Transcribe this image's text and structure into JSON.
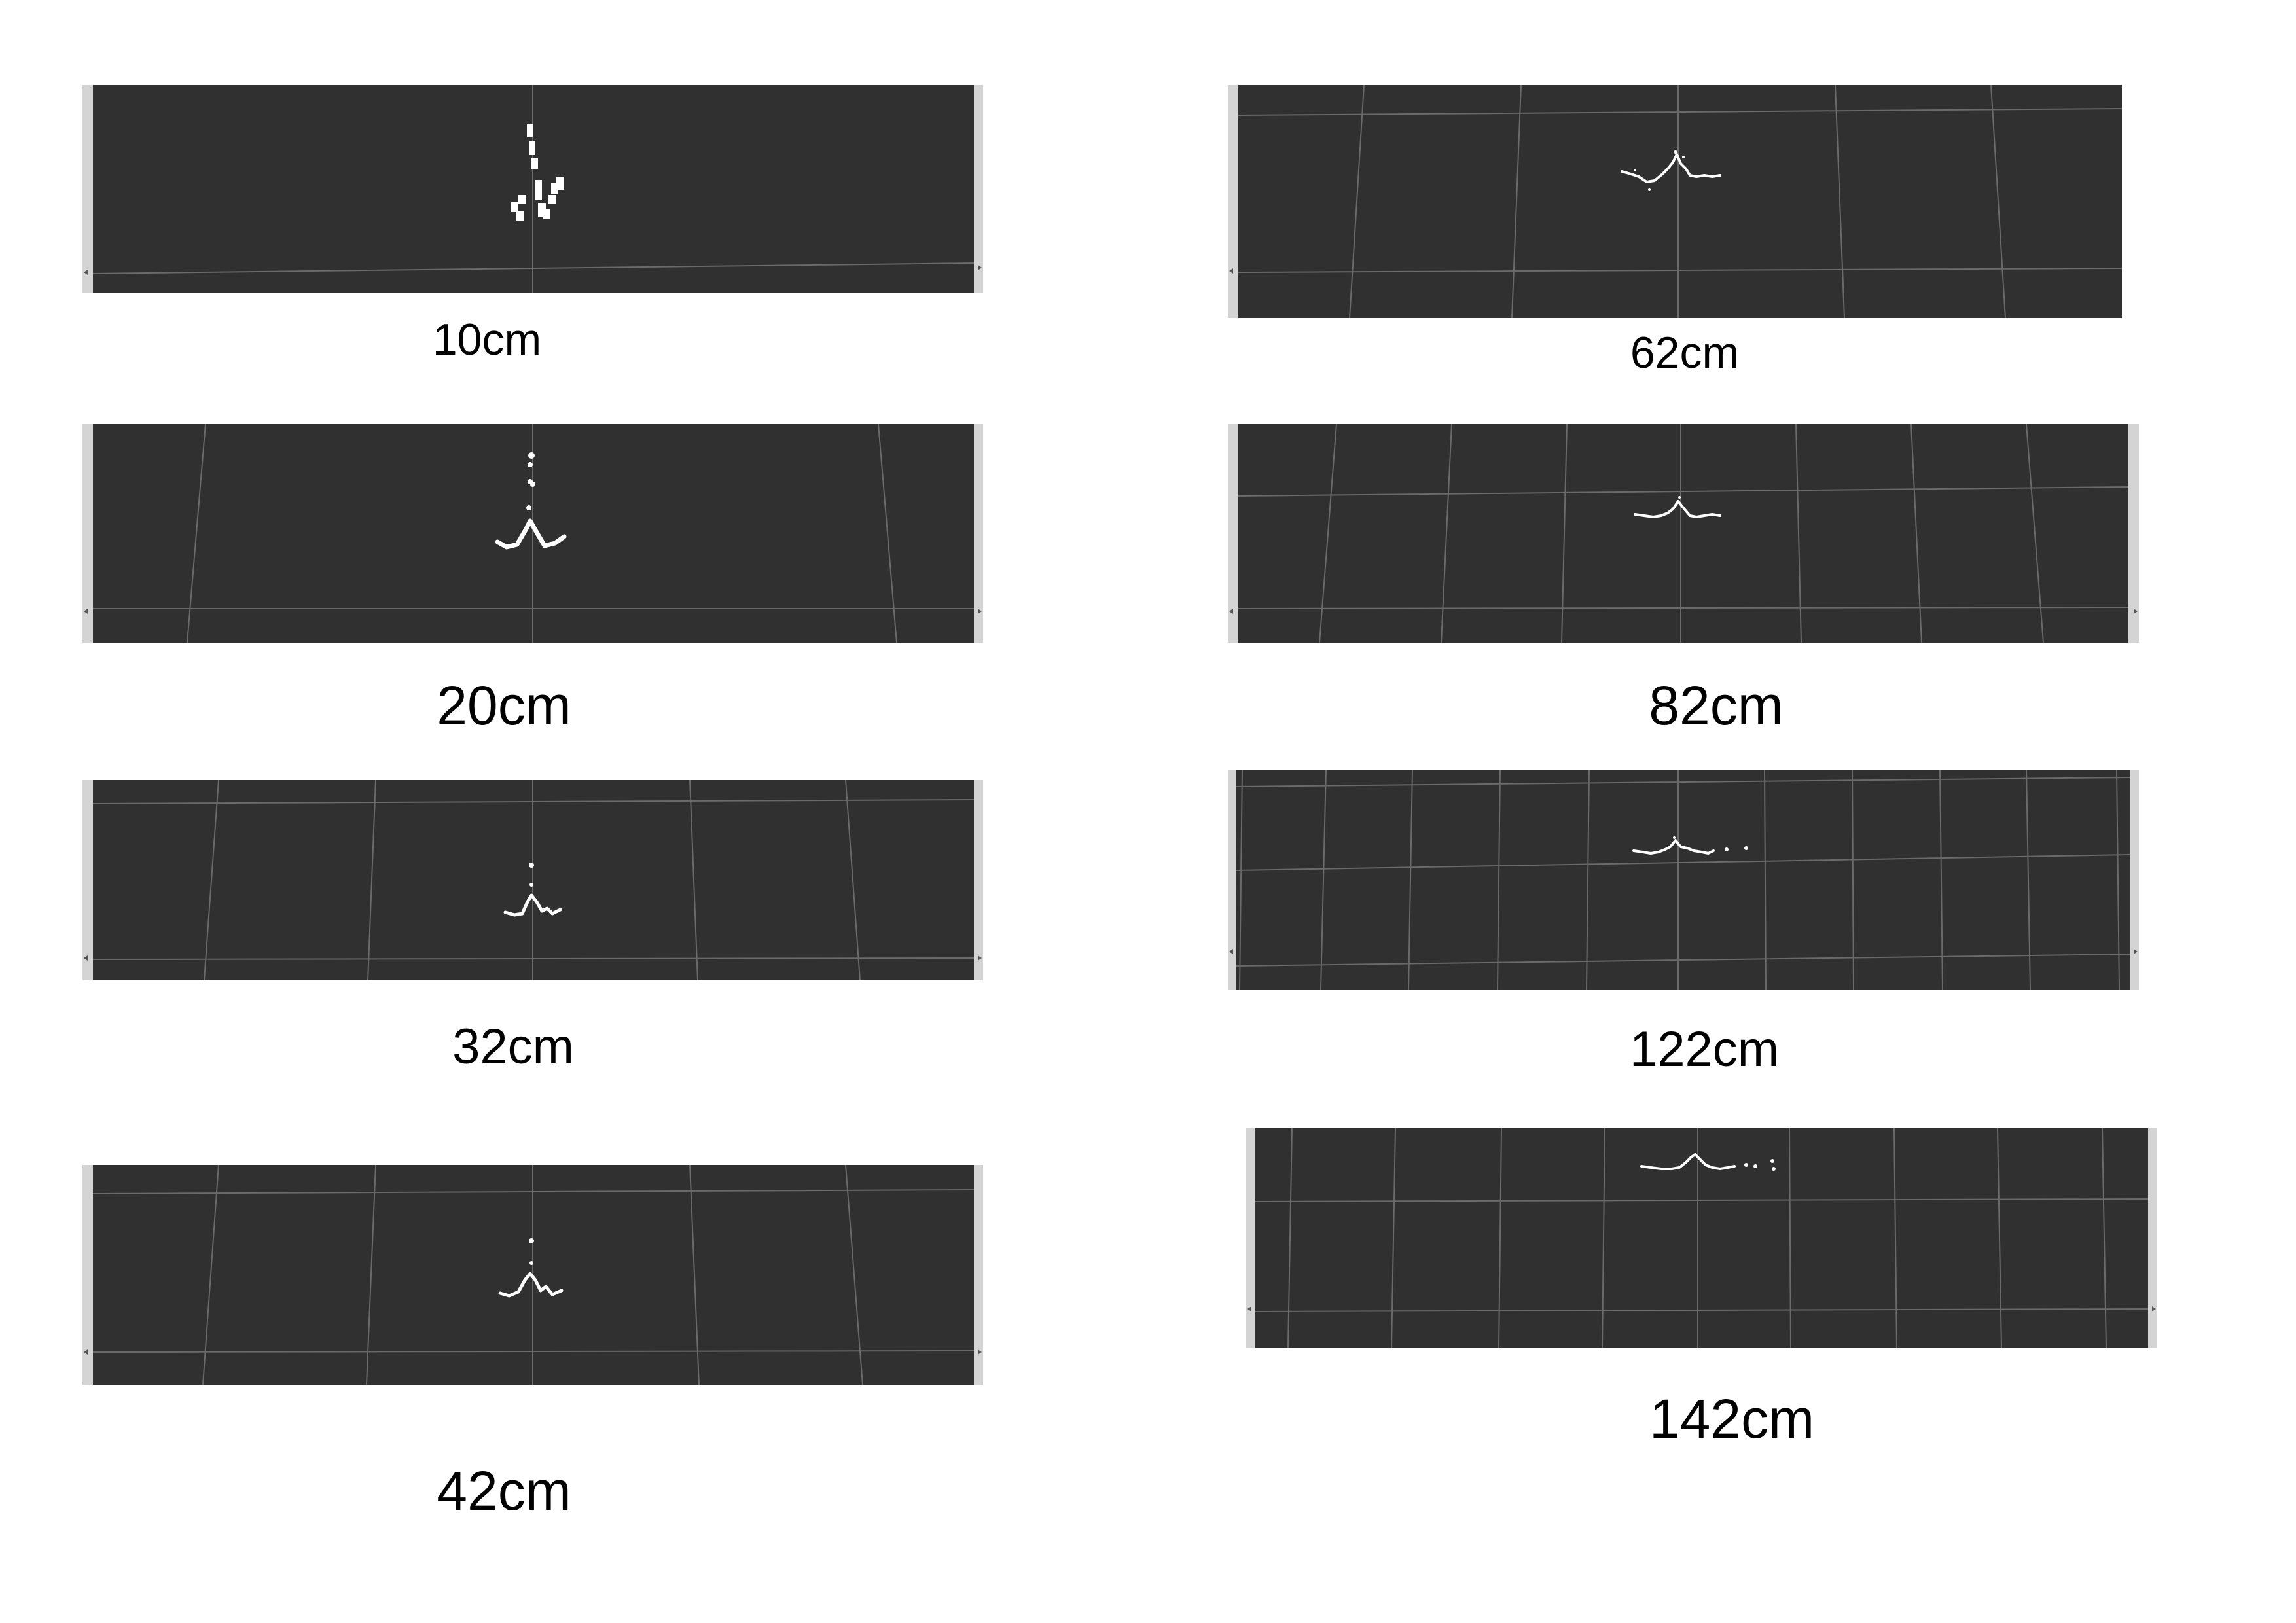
{
  "panels": [
    {
      "id": "p1",
      "label": "10cm"
    },
    {
      "id": "p2",
      "label": "20cm"
    },
    {
      "id": "p3",
      "label": "32cm"
    },
    {
      "id": "p4",
      "label": "42cm"
    },
    {
      "id": "p5",
      "label": "62cm"
    },
    {
      "id": "p6",
      "label": "82cm"
    },
    {
      "id": "p7",
      "label": "122cm"
    },
    {
      "id": "p8",
      "label": "142cm"
    }
  ]
}
